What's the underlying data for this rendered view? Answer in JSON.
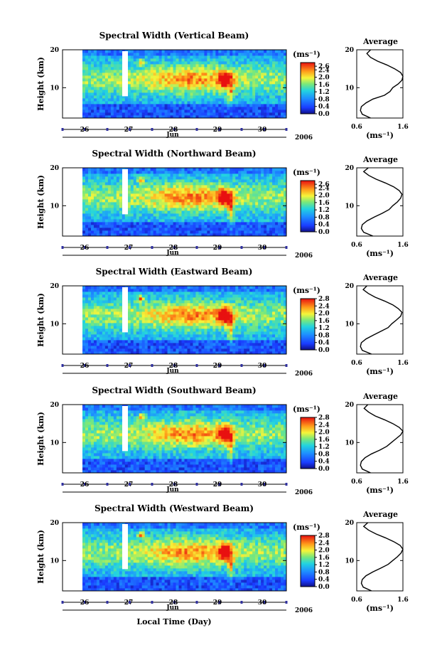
{
  "figure": {
    "bottom_xlabel": "Local Time (Day)"
  },
  "chart_data": [
    {
      "type": "heatmap",
      "title": "Spectral Width (Vertical Beam)",
      "ylabel": "Height (km)",
      "y_ticks": [
        "20",
        "10"
      ],
      "ylim": [
        2,
        20
      ],
      "x_ticks": [
        "26",
        "27",
        "28",
        "29",
        "30"
      ],
      "month_label": "Jun",
      "year_label": "2006",
      "colorbar": {
        "unit": "(ms⁻¹)",
        "ticks": [
          "2.6",
          "2.4",
          "2.0",
          "1.6",
          "1.2",
          "0.8",
          "0.4",
          "0.0"
        ],
        "range": [
          0.0,
          2.8
        ]
      },
      "profile": {
        "title": "Average",
        "xlim": [
          0.6,
          1.6
        ],
        "x_ticks": [
          "0.6",
          "1.6"
        ],
        "y_ticks": [
          "20",
          "10"
        ],
        "xlabel": "(ms⁻¹)",
        "heights": [
          2,
          3,
          4,
          5,
          6,
          7,
          8,
          9,
          10,
          11,
          12,
          13,
          14,
          15,
          16,
          17,
          18,
          19,
          20
        ],
        "values": [
          0.9,
          0.72,
          0.68,
          0.7,
          0.8,
          0.95,
          1.2,
          1.32,
          1.38,
          1.5,
          1.58,
          1.6,
          1.55,
          1.42,
          1.25,
          1.05,
          0.9,
          0.82,
          0.9
        ]
      }
    },
    {
      "type": "heatmap",
      "title": "Spectral Width (Northward Beam)",
      "ylabel": "Height (km)",
      "y_ticks": [
        "20",
        "10"
      ],
      "ylim": [
        2,
        20
      ],
      "x_ticks": [
        "26",
        "27",
        "28",
        "29",
        "30"
      ],
      "month_label": "Jun",
      "year_label": "2006",
      "colorbar": {
        "unit": "(ms⁻¹)",
        "ticks": [
          "2.6",
          "2.4",
          "2.0",
          "1.6",
          "1.2",
          "0.8",
          "0.4",
          "0.0"
        ],
        "range": [
          0.0,
          2.8
        ]
      },
      "profile": {
        "title": "Average",
        "xlim": [
          0.6,
          1.6
        ],
        "x_ticks": [
          "0.6",
          "1.6"
        ],
        "y_ticks": [
          "20",
          "10"
        ],
        "xlabel": "(ms⁻¹)",
        "heights": [
          2,
          3,
          4,
          5,
          6,
          7,
          8,
          9,
          10,
          11,
          12,
          13,
          14,
          15,
          16,
          17,
          18,
          19,
          20
        ],
        "values": [
          0.95,
          0.75,
          0.7,
          0.72,
          0.82,
          0.98,
          1.15,
          1.3,
          1.38,
          1.48,
          1.55,
          1.58,
          1.52,
          1.4,
          1.22,
          1.02,
          0.86,
          0.75,
          0.85
        ]
      }
    },
    {
      "type": "heatmap",
      "title": "Spectral Width (Eastward Beam)",
      "ylabel": "Height (km)",
      "y_ticks": [
        "20",
        "10"
      ],
      "ylim": [
        2,
        20
      ],
      "x_ticks": [
        "26",
        "27",
        "28",
        "29",
        "30"
      ],
      "month_label": "Jun",
      "year_label": "2006",
      "colorbar": {
        "unit": "(ms⁻¹)",
        "ticks": [
          "2.8",
          "2.4",
          "2.0",
          "1.6",
          "1.2",
          "0.8",
          "0.4",
          "0.0"
        ],
        "range": [
          0.0,
          2.8
        ]
      },
      "profile": {
        "title": "Average",
        "xlim": [
          0.6,
          1.6
        ],
        "x_ticks": [
          "0.6",
          "1.6"
        ],
        "y_ticks": [
          "20",
          "10"
        ],
        "xlabel": "(ms⁻¹)",
        "heights": [
          2,
          3,
          4,
          5,
          6,
          7,
          8,
          9,
          10,
          11,
          12,
          13,
          14,
          15,
          16,
          17,
          18,
          19,
          20
        ],
        "values": [
          0.92,
          0.72,
          0.68,
          0.7,
          0.8,
          0.96,
          1.12,
          1.28,
          1.36,
          1.46,
          1.55,
          1.58,
          1.5,
          1.38,
          1.2,
          1.0,
          0.85,
          0.74,
          0.82
        ]
      }
    },
    {
      "type": "heatmap",
      "title": "Spectral Width (Southward Beam)",
      "ylabel": "Height (km)",
      "y_ticks": [
        "20",
        "10"
      ],
      "ylim": [
        2,
        20
      ],
      "x_ticks": [
        "26",
        "27",
        "28",
        "29",
        "30"
      ],
      "month_label": "Jun",
      "year_label": "2006",
      "colorbar": {
        "unit": "(ms⁻¹)",
        "ticks": [
          "2.8",
          "2.4",
          "2.0",
          "1.6",
          "1.2",
          "0.8",
          "0.4",
          "0.0"
        ],
        "range": [
          0.0,
          2.8
        ]
      },
      "profile": {
        "title": "Average",
        "xlim": [
          0.6,
          1.6
        ],
        "x_ticks": [
          "0.6",
          "1.6"
        ],
        "y_ticks": [
          "20",
          "10"
        ],
        "xlabel": "(ms⁻¹)",
        "heights": [
          2,
          3,
          4,
          5,
          6,
          7,
          8,
          9,
          10,
          11,
          12,
          13,
          14,
          15,
          16,
          17,
          18,
          19,
          20
        ],
        "values": [
          0.9,
          0.72,
          0.68,
          0.7,
          0.78,
          0.92,
          1.1,
          1.25,
          1.35,
          1.45,
          1.55,
          1.6,
          1.52,
          1.38,
          1.2,
          1.0,
          0.86,
          0.76,
          0.84
        ]
      }
    },
    {
      "type": "heatmap",
      "title": "Spectral Width (Westward Beam)",
      "ylabel": "Height (km)",
      "y_ticks": [
        "20",
        "10"
      ],
      "ylim": [
        2,
        20
      ],
      "x_ticks": [
        "26",
        "27",
        "28",
        "29",
        "30"
      ],
      "month_label": "Jun",
      "year_label": "2006",
      "colorbar": {
        "unit": "(ms⁻¹)",
        "ticks": [
          "2.8",
          "2.4",
          "2.0",
          "1.6",
          "1.2",
          "0.8",
          "0.4",
          "0.0"
        ],
        "range": [
          0.0,
          2.8
        ]
      },
      "profile": {
        "title": "Average",
        "xlim": [
          0.6,
          1.6
        ],
        "x_ticks": [
          "0.6",
          "1.6"
        ],
        "y_ticks": [
          "20",
          "10"
        ],
        "xlabel": "(ms⁻¹)",
        "heights": [
          2,
          3,
          4,
          5,
          6,
          7,
          8,
          9,
          10,
          11,
          12,
          13,
          14,
          15,
          16,
          17,
          18,
          19,
          20
        ],
        "values": [
          0.92,
          0.74,
          0.7,
          0.72,
          0.8,
          0.95,
          1.12,
          1.28,
          1.38,
          1.48,
          1.56,
          1.6,
          1.54,
          1.4,
          1.22,
          1.02,
          0.86,
          0.75,
          0.84
        ]
      }
    }
  ]
}
